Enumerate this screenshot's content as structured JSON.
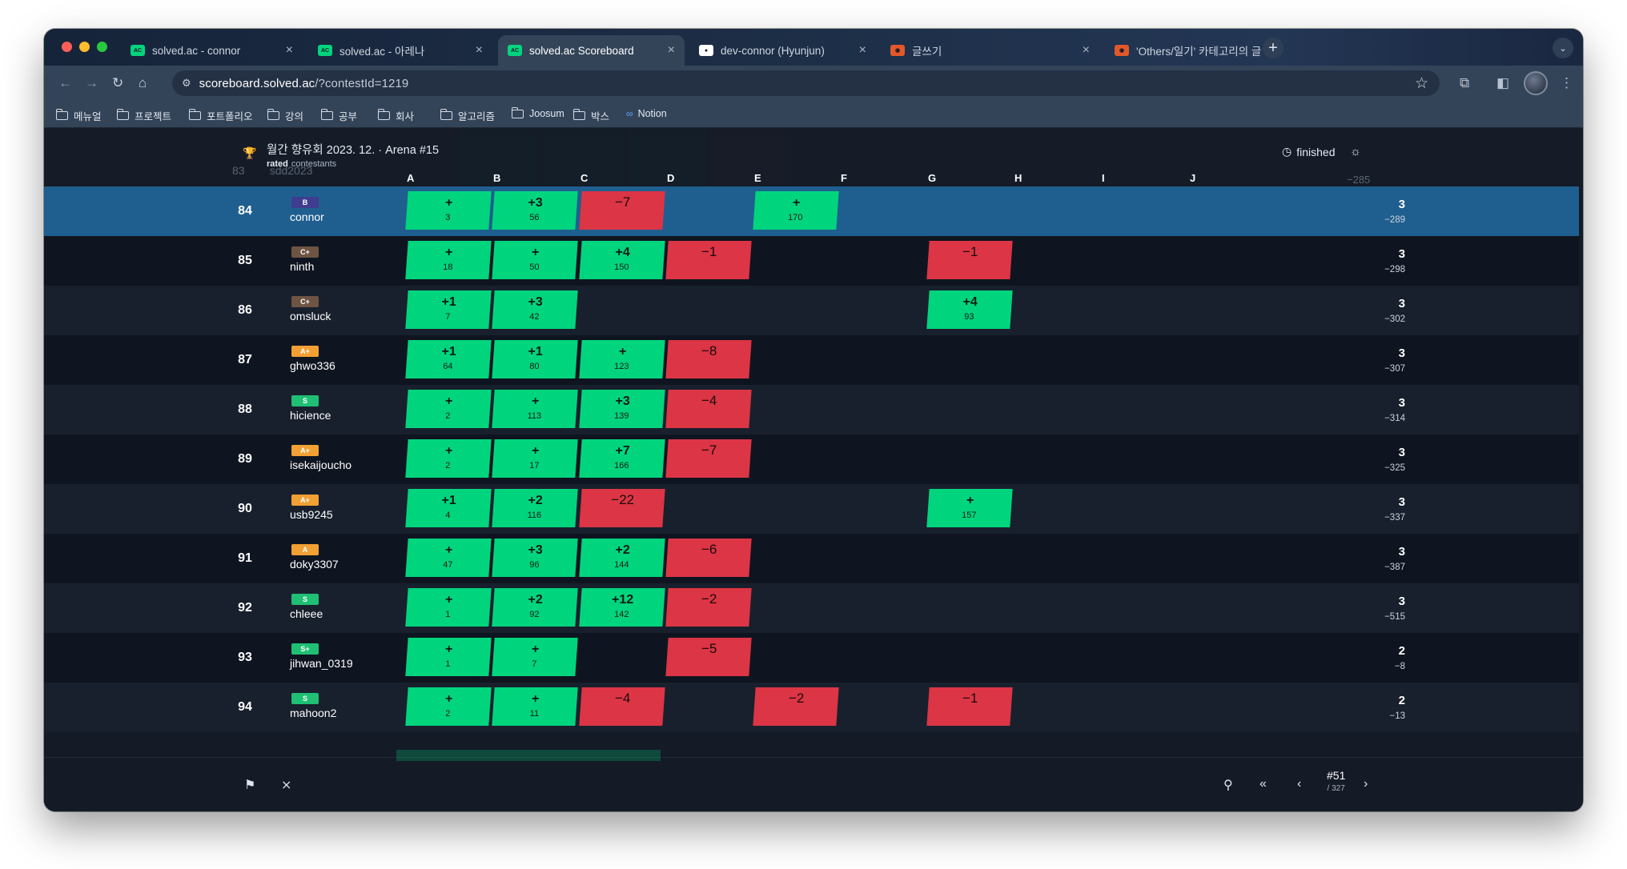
{
  "browser": {
    "tabs": [
      {
        "title": "solved.ac - connor",
        "favicon": "solvedac-icon",
        "active": false
      },
      {
        "title": "solved.ac - 아레나",
        "favicon": "solvedac-icon",
        "active": false
      },
      {
        "title": "solved.ac Scoreboard",
        "favicon": "solvedac-icon",
        "active": true
      },
      {
        "title": "dev-connor (Hyunjun)",
        "favicon": "github-icon",
        "active": false
      },
      {
        "title": "글쓰기",
        "favicon": "tistory-icon",
        "active": false
      },
      {
        "title": "'Others/일기' 카테고리의 글 목록",
        "favicon": "tistory-icon",
        "active": false
      }
    ],
    "url_host": "scoreboard.solved.ac",
    "url_path": "/?contestId=1219",
    "bookmarks": [
      {
        "label": "메뉴얼",
        "type": "folder"
      },
      {
        "label": "프로젝트",
        "type": "folder"
      },
      {
        "label": "포트폴리오",
        "type": "folder"
      },
      {
        "label": "강의",
        "type": "folder"
      },
      {
        "label": "공부",
        "type": "folder"
      },
      {
        "label": "회사",
        "type": "folder"
      },
      {
        "label": "알고리즘",
        "type": "folder"
      },
      {
        "label": "Joosum",
        "type": "folder"
      },
      {
        "label": "박스",
        "type": "folder"
      },
      {
        "label": "Notion",
        "type": "link"
      }
    ]
  },
  "contest": {
    "title": "월간 향유회 2023. 12. · Arena #15",
    "sub_bold": "rated",
    "sub_rest": "contestants",
    "status": "finished"
  },
  "problems": [
    "A",
    "B",
    "C",
    "D",
    "E",
    "F",
    "G",
    "H",
    "I",
    "J"
  ],
  "ghost_row": {
    "rank": "83",
    "handle": "sdd2023",
    "penalty": "−285"
  },
  "rows": [
    {
      "rank": "84",
      "tier": "B",
      "tier_color": "#3f3d8f",
      "handle": "connor",
      "me": true,
      "cells": {
        "A": [
          "+",
          "3",
          "ac"
        ],
        "B": [
          "+3",
          "56",
          "ac"
        ],
        "C": [
          "−7",
          "",
          "wa"
        ],
        "E": [
          "+",
          "170",
          "ac"
        ]
      },
      "solved": "3",
      "penalty": "−289"
    },
    {
      "rank": "85",
      "tier": "C+",
      "tier_color": "#6e5443",
      "handle": "ninth",
      "cells": {
        "A": [
          "+",
          "18",
          "ac"
        ],
        "B": [
          "+",
          "50",
          "ac"
        ],
        "C": [
          "+4",
          "150",
          "ac"
        ],
        "D": [
          "−1",
          "",
          "wa"
        ],
        "G": [
          "−1",
          "",
          "wa"
        ]
      },
      "solved": "3",
      "penalty": "−298"
    },
    {
      "rank": "86",
      "tier": "C+",
      "tier_color": "#6e5443",
      "handle": "omsluck",
      "cells": {
        "A": [
          "+1",
          "7",
          "ac"
        ],
        "B": [
          "+3",
          "42",
          "ac"
        ],
        "G": [
          "+4",
          "93",
          "ac"
        ]
      },
      "solved": "3",
      "penalty": "−302"
    },
    {
      "rank": "87",
      "tier": "A+",
      "tier_color": "#f2a033",
      "handle": "ghwo336",
      "cells": {
        "A": [
          "+1",
          "64",
          "ac"
        ],
        "B": [
          "+1",
          "80",
          "ac"
        ],
        "C": [
          "+",
          "123",
          "ac"
        ],
        "D": [
          "−8",
          "",
          "wa"
        ]
      },
      "solved": "3",
      "penalty": "−307"
    },
    {
      "rank": "88",
      "tier": "S",
      "tier_color": "#1fbf74",
      "handle": "hicience",
      "cells": {
        "A": [
          "+",
          "2",
          "ac"
        ],
        "B": [
          "+",
          "113",
          "ac"
        ],
        "C": [
          "+3",
          "139",
          "ac"
        ],
        "D": [
          "−4",
          "",
          "wa"
        ]
      },
      "solved": "3",
      "penalty": "−314"
    },
    {
      "rank": "89",
      "tier": "A+",
      "tier_color": "#f2a033",
      "handle": "isekaijoucho",
      "cells": {
        "A": [
          "+",
          "2",
          "ac"
        ],
        "B": [
          "+",
          "17",
          "ac"
        ],
        "C": [
          "+7",
          "166",
          "ac"
        ],
        "D": [
          "−7",
          "",
          "wa"
        ]
      },
      "solved": "3",
      "penalty": "−325"
    },
    {
      "rank": "90",
      "tier": "A+",
      "tier_color": "#f2a033",
      "handle": "usb9245",
      "cells": {
        "A": [
          "+1",
          "4",
          "ac"
        ],
        "B": [
          "+2",
          "116",
          "ac"
        ],
        "C": [
          "−22",
          "",
          "wa"
        ],
        "G": [
          "+",
          "157",
          "ac"
        ]
      },
      "solved": "3",
      "penalty": "−337"
    },
    {
      "rank": "91",
      "tier": "A",
      "tier_color": "#f2a033",
      "handle": "doky3307",
      "cells": {
        "A": [
          "+",
          "47",
          "ac"
        ],
        "B": [
          "+3",
          "96",
          "ac"
        ],
        "C": [
          "+2",
          "144",
          "ac"
        ],
        "D": [
          "−6",
          "",
          "wa"
        ]
      },
      "solved": "3",
      "penalty": "−387"
    },
    {
      "rank": "92",
      "tier": "S",
      "tier_color": "#1fbf74",
      "handle": "chleee",
      "cells": {
        "A": [
          "+",
          "1",
          "ac"
        ],
        "B": [
          "+2",
          "92",
          "ac"
        ],
        "C": [
          "+12",
          "142",
          "ac"
        ],
        "D": [
          "−2",
          "",
          "wa"
        ]
      },
      "solved": "3",
      "penalty": "−515"
    },
    {
      "rank": "93",
      "tier": "S+",
      "tier_color": "#1fbf74",
      "handle": "jihwan_0319",
      "cells": {
        "A": [
          "+",
          "1",
          "ac"
        ],
        "B": [
          "+",
          "7",
          "ac"
        ],
        "D": [
          "−5",
          "",
          "wa"
        ]
      },
      "solved": "2",
      "penalty": "−8"
    },
    {
      "rank": "94",
      "tier": "S",
      "tier_color": "#1fbf74",
      "handle": "mahoon2",
      "cells": {
        "A": [
          "+",
          "2",
          "ac"
        ],
        "B": [
          "+",
          "11",
          "ac"
        ],
        "C": [
          "−4",
          "",
          "wa"
        ],
        "E": [
          "−2",
          "",
          "wa"
        ],
        "G": [
          "−1",
          "",
          "wa"
        ]
      },
      "solved": "2",
      "penalty": "−13"
    }
  ],
  "pager": {
    "current": "#51",
    "total": "/ 327"
  }
}
